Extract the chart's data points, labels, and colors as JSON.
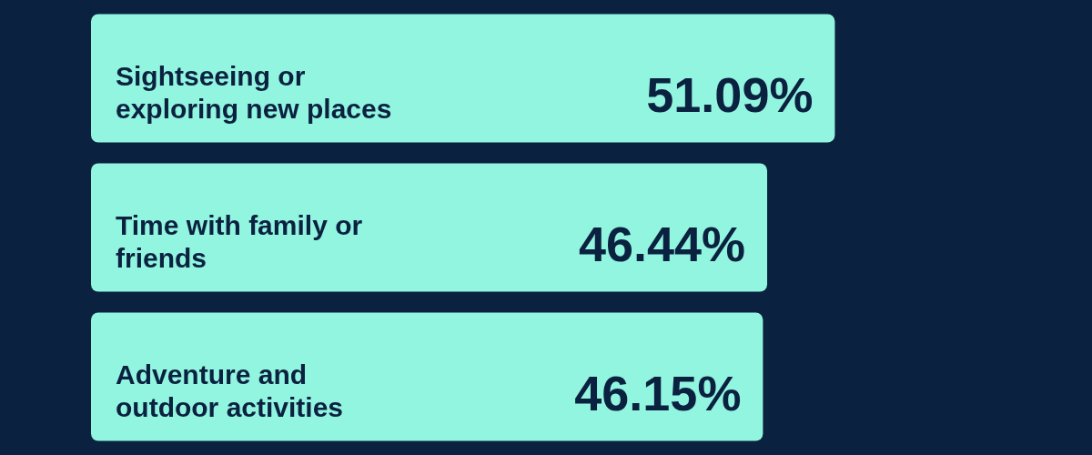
{
  "chart_data": {
    "type": "bar",
    "orientation": "horizontal",
    "categories": [
      "Sightseeing or exploring new places",
      "Time with family or friends",
      "Adventure and outdoor activities"
    ],
    "values": [
      51.09,
      46.44,
      46.15
    ],
    "color": "#92f5df",
    "value_labels": [
      "51.09%",
      "46.44%",
      "46.15%"
    ],
    "legend": false
  }
}
